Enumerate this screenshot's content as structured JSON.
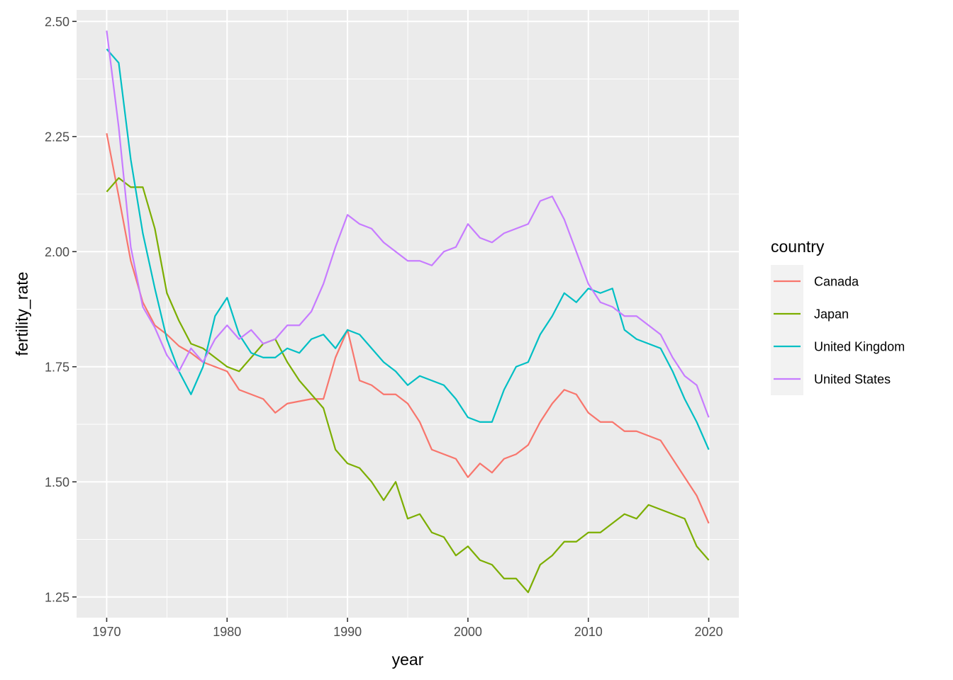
{
  "chart_data": {
    "type": "line",
    "xlabel": "year",
    "ylabel": "fertility_rate",
    "xlim": [
      1967.5,
      2022.5
    ],
    "ylim": [
      1.205,
      2.525
    ],
    "x_ticks": [
      1970,
      1980,
      1990,
      2000,
      2010,
      2020
    ],
    "x_tick_labels": [
      "1970",
      "1980",
      "1990",
      "2000",
      "2010",
      "2020"
    ],
    "y_ticks": [
      1.25,
      1.5,
      1.75,
      2.0,
      2.25,
      2.5
    ],
    "y_tick_labels": [
      "1.25",
      "1.50",
      "1.75",
      "2.00",
      "2.25",
      "2.50"
    ],
    "grid": true,
    "legend": {
      "title": "country",
      "position": "right"
    },
    "x": [
      1970,
      1971,
      1972,
      1973,
      1974,
      1975,
      1976,
      1977,
      1978,
      1979,
      1980,
      1981,
      1982,
      1983,
      1984,
      1985,
      1986,
      1987,
      1988,
      1989,
      1990,
      1991,
      1992,
      1993,
      1994,
      1995,
      1996,
      1997,
      1998,
      1999,
      2000,
      2001,
      2002,
      2003,
      2004,
      2005,
      2006,
      2007,
      2008,
      2009,
      2010,
      2011,
      2012,
      2013,
      2014,
      2015,
      2016,
      2017,
      2018,
      2019,
      2020
    ],
    "series": [
      {
        "name": "Canada",
        "color": "#F8766D",
        "values": [
          2.257,
          2.12,
          1.98,
          1.89,
          1.84,
          1.82,
          1.795,
          1.78,
          1.76,
          1.75,
          1.74,
          1.7,
          1.69,
          1.68,
          1.65,
          1.67,
          1.675,
          1.68,
          1.68,
          1.77,
          1.83,
          1.72,
          1.71,
          1.69,
          1.69,
          1.67,
          1.63,
          1.57,
          1.56,
          1.55,
          1.51,
          1.54,
          1.52,
          1.55,
          1.56,
          1.58,
          1.63,
          1.67,
          1.7,
          1.69,
          1.65,
          1.63,
          1.63,
          1.61,
          1.61,
          1.6,
          1.59,
          1.55,
          1.51,
          1.47,
          1.41
        ]
      },
      {
        "name": "Japan",
        "color": "#7CAE00",
        "values": [
          2.13,
          2.16,
          2.14,
          2.14,
          2.05,
          1.91,
          1.85,
          1.8,
          1.79,
          1.77,
          1.75,
          1.74,
          1.77,
          1.8,
          1.81,
          1.76,
          1.72,
          1.69,
          1.66,
          1.57,
          1.54,
          1.53,
          1.5,
          1.46,
          1.5,
          1.42,
          1.43,
          1.39,
          1.38,
          1.34,
          1.36,
          1.33,
          1.32,
          1.29,
          1.29,
          1.26,
          1.32,
          1.34,
          1.37,
          1.37,
          1.39,
          1.39,
          1.41,
          1.43,
          1.42,
          1.45,
          1.44,
          1.43,
          1.42,
          1.36,
          1.33
        ]
      },
      {
        "name": "United Kingdom",
        "color": "#00BFC4",
        "values": [
          2.44,
          2.41,
          2.2,
          2.04,
          1.92,
          1.81,
          1.74,
          1.69,
          1.75,
          1.86,
          1.9,
          1.82,
          1.78,
          1.77,
          1.77,
          1.79,
          1.78,
          1.81,
          1.82,
          1.79,
          1.83,
          1.82,
          1.79,
          1.76,
          1.74,
          1.71,
          1.73,
          1.72,
          1.71,
          1.68,
          1.64,
          1.63,
          1.63,
          1.7,
          1.75,
          1.76,
          1.82,
          1.86,
          1.91,
          1.89,
          1.92,
          1.91,
          1.92,
          1.83,
          1.81,
          1.8,
          1.79,
          1.74,
          1.68,
          1.63,
          1.57
        ]
      },
      {
        "name": "United States",
        "color": "#C77CFF",
        "values": [
          2.48,
          2.27,
          2.01,
          1.88,
          1.835,
          1.775,
          1.74,
          1.79,
          1.76,
          1.81,
          1.84,
          1.81,
          1.83,
          1.8,
          1.81,
          1.84,
          1.84,
          1.87,
          1.93,
          2.01,
          2.08,
          2.06,
          2.05,
          2.02,
          2.0,
          1.98,
          1.98,
          1.97,
          2.0,
          2.01,
          2.06,
          2.03,
          2.02,
          2.04,
          2.05,
          2.06,
          2.11,
          2.12,
          2.07,
          2.0,
          1.93,
          1.89,
          1.88,
          1.86,
          1.86,
          1.84,
          1.82,
          1.77,
          1.73,
          1.71,
          1.64
        ]
      }
    ]
  }
}
